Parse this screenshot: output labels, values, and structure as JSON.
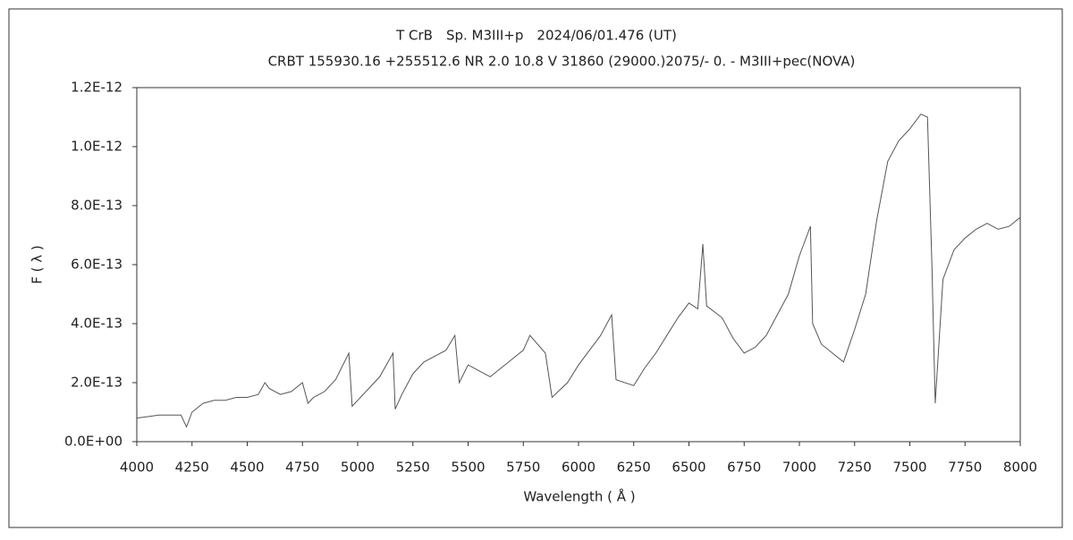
{
  "chart_data": {
    "type": "line",
    "title": "T CrB　Sp. M3III+p　2024/06/01.476 (UT)",
    "subtitle": "CRBT 155930.16 +255512.6 NR 2.0 10.8 V 31860 (29000.)2075/-  0. - M3III+pec(NOVA)",
    "x_label": "Wavelength ( Å )",
    "y_label": "F ( λ )",
    "xlim": [
      4000,
      8000
    ],
    "xticks": [
      4000,
      4250,
      4500,
      4750,
      5000,
      5250,
      5500,
      5750,
      6000,
      6250,
      6500,
      6750,
      7000,
      7250,
      7500,
      7750,
      8000
    ],
    "ylim": [
      0,
      1.2e-12
    ],
    "yticks": [
      {
        "value": 0,
        "label": "0.0E+00"
      },
      {
        "value": 2e-13,
        "label": "2.0E-13"
      },
      {
        "value": 4e-13,
        "label": "4.0E-13"
      },
      {
        "value": 6e-13,
        "label": "6.0E-13"
      },
      {
        "value": 8e-13,
        "label": "8.0E-13"
      },
      {
        "value": 1e-12,
        "label": "1.0E-12"
      },
      {
        "value": 1.2e-12,
        "label": "1.2E-12"
      }
    ],
    "grid": false,
    "x": [
      4000,
      4050,
      4100,
      4150,
      4200,
      4225,
      4250,
      4300,
      4350,
      4400,
      4450,
      4500,
      4550,
      4580,
      4600,
      4650,
      4700,
      4750,
      4775,
      4800,
      4850,
      4900,
      4960,
      4975,
      5000,
      5050,
      5100,
      5160,
      5170,
      5200,
      5250,
      5300,
      5350,
      5400,
      5440,
      5460,
      5500,
      5550,
      5600,
      5650,
      5700,
      5750,
      5780,
      5850,
      5880,
      5950,
      6000,
      6050,
      6100,
      6150,
      6170,
      6250,
      6300,
      6350,
      6400,
      6450,
      6500,
      6540,
      6563,
      6580,
      6650,
      6700,
      6750,
      6800,
      6850,
      6900,
      6950,
      7000,
      7050,
      7060,
      7100,
      7150,
      7200,
      7250,
      7300,
      7350,
      7400,
      7450,
      7500,
      7550,
      7580,
      7600,
      7615,
      7650,
      7700,
      7750,
      7800,
      7850,
      7900,
      7950,
      8000
    ],
    "series": [
      {
        "name": "F",
        "color": "#555555",
        "values": [
          8e-14,
          8.5e-14,
          9e-14,
          9e-14,
          9e-14,
          5e-14,
          1e-13,
          1.3e-13,
          1.4e-13,
          1.4e-13,
          1.5e-13,
          1.5e-13,
          1.6e-13,
          2e-13,
          1.8e-13,
          1.6e-13,
          1.7e-13,
          2e-13,
          1.3e-13,
          1.5e-13,
          1.7e-13,
          2.1e-13,
          3e-13,
          1.2e-13,
          1.4e-13,
          1.8e-13,
          2.2e-13,
          3e-13,
          1.1e-13,
          1.6e-13,
          2.3e-13,
          2.7e-13,
          2.9e-13,
          3.1e-13,
          3.6e-13,
          2e-13,
          2.6e-13,
          2.4e-13,
          2.2e-13,
          2.5e-13,
          2.8e-13,
          3.1e-13,
          3.6e-13,
          3e-13,
          1.5e-13,
          2e-13,
          2.6e-13,
          3.1e-13,
          3.6e-13,
          4.3e-13,
          2.1e-13,
          1.9e-13,
          2.5e-13,
          3e-13,
          3.6e-13,
          4.2e-13,
          4.7e-13,
          4.5e-13,
          6.7e-13,
          4.6e-13,
          4.2e-13,
          3.5e-13,
          3e-13,
          3.2e-13,
          3.6e-13,
          4.3e-13,
          5e-13,
          6.3e-13,
          7.3e-13,
          4e-13,
          3.3e-13,
          3e-13,
          2.7e-13,
          3.8e-13,
          5e-13,
          7.5e-13,
          9.5e-13,
          1.02e-12,
          1.06e-12,
          1.11e-12,
          1.1e-12,
          6e-13,
          1.3e-13,
          5.5e-13,
          6.5e-13,
          6.9e-13,
          7.2e-13,
          7.4e-13,
          7.2e-13,
          7.3e-13,
          7.6e-13
        ]
      }
    ]
  }
}
